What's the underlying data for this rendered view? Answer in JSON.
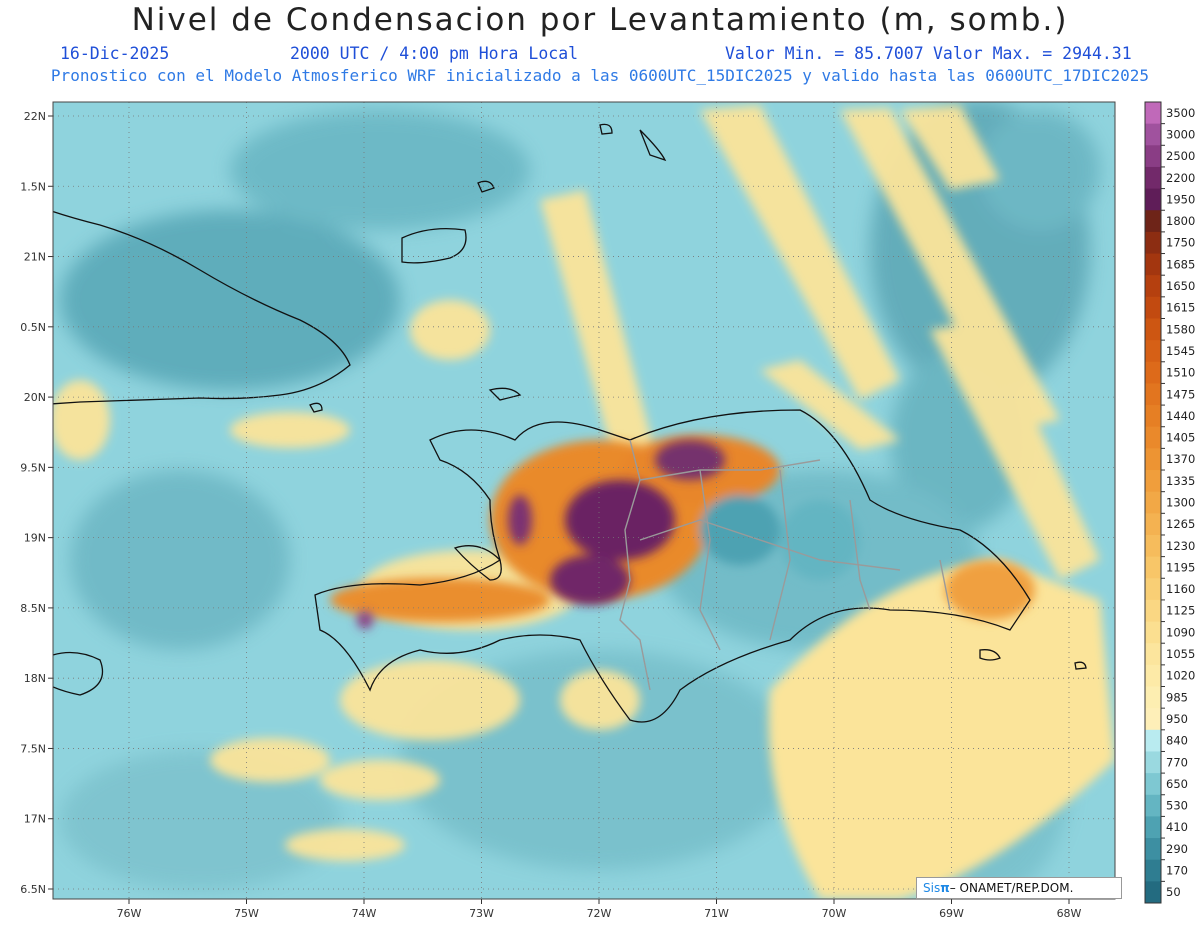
{
  "header": {
    "title": "Nivel de Condensacion por Levantamiento (m, somb.)",
    "date": "16-Dic-2025",
    "time": "2000 UTC / 4:00 pm Hora Local",
    "valmin": "Valor Min. = 85.7007",
    "valmax": "Valor Max. = 2944.31",
    "forecast": "Pronostico con el Modelo Atmosferico WRF inicializado a las 0600UTC_15DIC2025 y valido hasta las  0600UTC_17DIC2025"
  },
  "axes": {
    "lat_labels": [
      "22N",
      "1.5N",
      "21N",
      "0.5N",
      "20N",
      "9.5N",
      "19N",
      "8.5N",
      "18N",
      "7.5N",
      "17N",
      "6.5N"
    ],
    "lon_labels": [
      "76W",
      "75W",
      "74W",
      "73W",
      "72W",
      "71W",
      "70W",
      "69W",
      "68W"
    ]
  },
  "colorbar": {
    "levels": [
      "3500",
      "3000",
      "2500",
      "2200",
      "1950",
      "1800",
      "1750",
      "1685",
      "1650",
      "1615",
      "1580",
      "1545",
      "1510",
      "1475",
      "1440",
      "1405",
      "1370",
      "1335",
      "1300",
      "1265",
      "1230",
      "1195",
      "1160",
      "1125",
      "1090",
      "1055",
      "1020",
      "985",
      "950",
      "840",
      "770",
      "650",
      "530",
      "410",
      "290",
      "170",
      "50"
    ],
    "colors": [
      "#c069b9",
      "#a0529e",
      "#8a3d85",
      "#72296a",
      "#5f1d58",
      "#6e2418",
      "#8c2d12",
      "#a3360f",
      "#b5400f",
      "#c24a10",
      "#cd5612",
      "#d66016",
      "#dd6a1a",
      "#e2751f",
      "#e67f24",
      "#ea892b",
      "#ed9433",
      "#f09e3c",
      "#f2a846",
      "#f4b251",
      "#f6bc5c",
      "#f8c668",
      "#f9cf75",
      "#fad783",
      "#fbdf90",
      "#fce59d",
      "#fdeaa7",
      "#fdeeb1",
      "#feefb8",
      "#b9ebf0",
      "#9ad9e0",
      "#7ec8d2",
      "#64b5c2",
      "#4ea2b2",
      "#3d8fa2",
      "#2f7d91",
      "#236b80"
    ]
  },
  "credit": {
    "sis": "Sis",
    "pi": "π",
    "rest": "– ONAMET/REP.DOM."
  }
}
